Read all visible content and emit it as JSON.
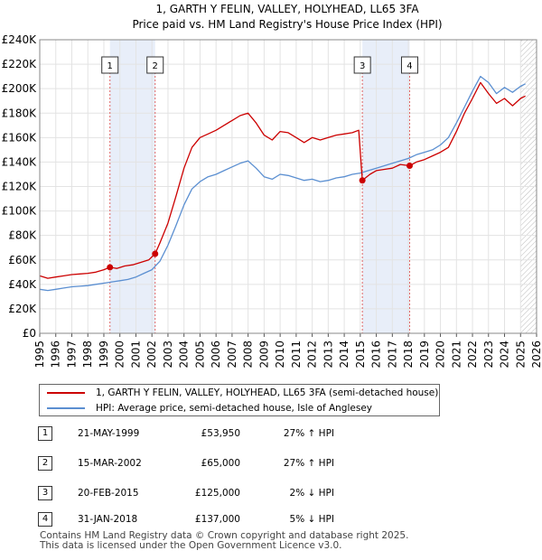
{
  "chart_data": {
    "type": "line",
    "title": "1, GARTH Y FELIN, VALLEY, HOLYHEAD, LL65 3FA",
    "subtitle": "Price paid vs. HM Land Registry's House Price Index (HPI)",
    "xlabel": "",
    "ylabel": "",
    "xlim": [
      1995,
      2026
    ],
    "ylim": [
      0,
      240000
    ],
    "y_ticks": [
      0,
      20000,
      40000,
      60000,
      80000,
      100000,
      120000,
      140000,
      160000,
      180000,
      200000,
      220000,
      240000
    ],
    "y_tick_labels": [
      "£0",
      "£20K",
      "£40K",
      "£60K",
      "£80K",
      "£100K",
      "£120K",
      "£140K",
      "£160K",
      "£180K",
      "£200K",
      "£220K",
      "£240K"
    ],
    "x_ticks": [
      1995,
      1996,
      1997,
      1998,
      1999,
      2000,
      2001,
      2002,
      2003,
      2004,
      2005,
      2006,
      2007,
      2008,
      2009,
      2010,
      2011,
      2012,
      2013,
      2014,
      2015,
      2016,
      2017,
      2018,
      2019,
      2020,
      2021,
      2022,
      2023,
      2024,
      2025,
      2026
    ],
    "x_tick_labels": [
      "1995",
      "1996",
      "1997",
      "1998",
      "1999",
      "2000",
      "2001",
      "2002",
      "2003",
      "2004",
      "2005",
      "2006",
      "2007",
      "2008",
      "2009",
      "2010",
      "2011",
      "2012",
      "2013",
      "2014",
      "2015",
      "2016",
      "2017",
      "2018",
      "2019",
      "2020",
      "2021",
      "2022",
      "2023",
      "2024",
      "2025",
      "2026"
    ],
    "grid": true,
    "series": [
      {
        "name": "1, GARTH Y FELIN, VALLEY, HOLYHEAD, LL65 3FA (semi-detached house)",
        "color": "#cc0000",
        "x": [
          1995.0,
          1995.5,
          1996.0,
          1996.5,
          1997.0,
          1997.5,
          1998.0,
          1998.5,
          1999.0,
          1999.38,
          1999.8,
          2000.3,
          2000.8,
          2001.3,
          2001.8,
          2002.2,
          2002.5,
          2003.0,
          2003.5,
          2004.0,
          2004.5,
          2005.0,
          2005.5,
          2006.0,
          2006.5,
          2007.0,
          2007.5,
          2008.0,
          2008.5,
          2009.0,
          2009.5,
          2010.0,
          2010.5,
          2011.0,
          2011.5,
          2012.0,
          2012.5,
          2013.0,
          2013.5,
          2014.0,
          2014.5,
          2014.9,
          2015.13,
          2015.6,
          2016.0,
          2016.5,
          2017.0,
          2017.5,
          2018.08,
          2018.5,
          2019.0,
          2019.5,
          2020.0,
          2020.5,
          2021.0,
          2021.5,
          2022.0,
          2022.5,
          2023.0,
          2023.5,
          2024.0,
          2024.5,
          2025.0,
          2025.3
        ],
        "values": [
          47000,
          45000,
          46000,
          47000,
          48000,
          48500,
          49000,
          50000,
          52000,
          53950,
          53000,
          55000,
          56000,
          58000,
          60000,
          65000,
          74000,
          90000,
          112000,
          135000,
          152000,
          160000,
          163000,
          166000,
          170000,
          174000,
          178000,
          180000,
          172000,
          162000,
          158000,
          165000,
          164000,
          160000,
          156000,
          160000,
          158000,
          160000,
          162000,
          163000,
          164000,
          166000,
          125000,
          130000,
          133000,
          134000,
          135000,
          138000,
          137000,
          140000,
          142000,
          145000,
          148000,
          152000,
          165000,
          180000,
          192000,
          205000,
          196000,
          188000,
          192000,
          186000,
          192000,
          194000
        ]
      },
      {
        "name": "HPI: Average price, semi-detached house, Isle of Anglesey",
        "color": "#5b8fd1",
        "x": [
          1995.0,
          1995.5,
          1996.0,
          1996.5,
          1997.0,
          1997.5,
          1998.0,
          1998.5,
          1999.0,
          1999.5,
          2000.0,
          2000.5,
          2001.0,
          2001.5,
          2002.0,
          2002.5,
          2003.0,
          2003.5,
          2004.0,
          2004.5,
          2005.0,
          2005.5,
          2006.0,
          2006.5,
          2007.0,
          2007.5,
          2008.0,
          2008.5,
          2009.0,
          2009.5,
          2010.0,
          2010.5,
          2011.0,
          2011.5,
          2012.0,
          2012.5,
          2013.0,
          2013.5,
          2014.0,
          2014.5,
          2015.0,
          2015.5,
          2016.0,
          2016.5,
          2017.0,
          2017.5,
          2018.0,
          2018.5,
          2019.0,
          2019.5,
          2020.0,
          2020.5,
          2021.0,
          2021.5,
          2022.0,
          2022.5,
          2023.0,
          2023.5,
          2024.0,
          2024.5,
          2025.0,
          2025.3
        ],
        "values": [
          36000,
          35000,
          36000,
          37000,
          38000,
          38500,
          39000,
          40000,
          41000,
          42000,
          43000,
          44000,
          46000,
          49000,
          52000,
          59000,
          72000,
          88000,
          105000,
          118000,
          124000,
          128000,
          130000,
          133000,
          136000,
          139000,
          141000,
          135000,
          128000,
          126000,
          130000,
          129000,
          127000,
          125000,
          126000,
          124000,
          125000,
          127000,
          128000,
          130000,
          131000,
          133000,
          135000,
          137000,
          139000,
          141000,
          143000,
          146000,
          148000,
          150000,
          154000,
          160000,
          172000,
          185000,
          198000,
          210000,
          205000,
          196000,
          201000,
          197000,
          202000,
          204000
        ]
      }
    ],
    "annotations": [
      {
        "label": "1",
        "x": 1999.38,
        "price": 53950
      },
      {
        "label": "2",
        "x": 2002.2,
        "price": 65000
      },
      {
        "label": "3",
        "x": 2015.13,
        "price": 125000
      },
      {
        "label": "4",
        "x": 2018.08,
        "price": 137000
      }
    ],
    "shaded_periods": [
      [
        1999.38,
        2002.2
      ],
      [
        2015.13,
        2018.08
      ]
    ],
    "hatched_from": 2025.0,
    "legend_position": "below-chart"
  },
  "legend": {
    "property": "1, GARTH Y FELIN, VALLEY, HOLYHEAD, LL65 3FA (semi-detached house)",
    "hpi": "HPI: Average price, semi-detached house, Isle of Anglesey"
  },
  "sales": [
    {
      "num": "1",
      "date": "21-MAY-1999",
      "price": "£53,950",
      "hpi": "27% ↑ HPI"
    },
    {
      "num": "2",
      "date": "15-MAR-2002",
      "price": "£65,000",
      "hpi": "27% ↑ HPI"
    },
    {
      "num": "3",
      "date": "20-FEB-2015",
      "price": "£125,000",
      "hpi": "2% ↓ HPI"
    },
    {
      "num": "4",
      "date": "31-JAN-2018",
      "price": "£137,000",
      "hpi": "5% ↓ HPI"
    }
  ],
  "footer": {
    "line1": "Contains HM Land Registry data © Crown copyright and database right 2025.",
    "line2": "This data is licensed under the Open Government Licence v3.0."
  }
}
